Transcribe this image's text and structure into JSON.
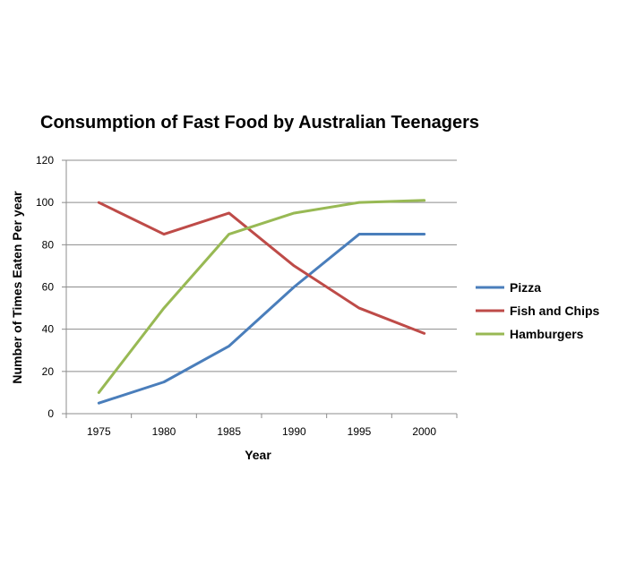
{
  "chart_data": {
    "type": "line",
    "title": "Consumption of Fast Food by Australian Teenagers",
    "xlabel": "Year",
    "ylabel": "Number of Times Eaten Per year",
    "x": [
      "1975",
      "1980",
      "1985",
      "1990",
      "1995",
      "2000"
    ],
    "yticks": [
      "0",
      "20",
      "40",
      "60",
      "80",
      "100",
      "120"
    ],
    "ylim": [
      0,
      120
    ],
    "grid": true,
    "legend_position": "right",
    "series": [
      {
        "name": "Pizza",
        "color": "#4a7ebb",
        "values": [
          5,
          15,
          32,
          60,
          85,
          85
        ]
      },
      {
        "name": "Fish and Chips",
        "color": "#be4b48",
        "values": [
          100,
          85,
          95,
          70,
          50,
          38
        ]
      },
      {
        "name": "Hamburgers",
        "color": "#98b954",
        "values": [
          10,
          50,
          85,
          95,
          100,
          101
        ]
      }
    ]
  }
}
